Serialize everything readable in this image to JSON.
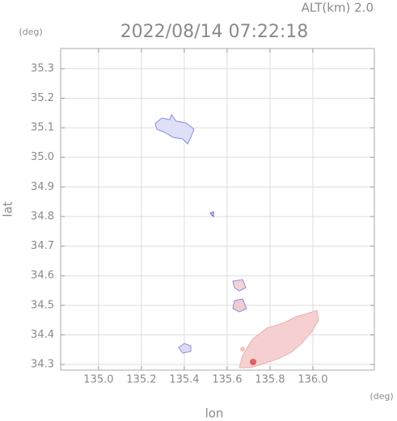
{
  "chart_data": {
    "type": "map",
    "title": "2022/08/14 07:22:18",
    "subtitle": "ALT(km) 2.0",
    "x_label": "lon",
    "y_label": "lat",
    "x_unit": "(deg)",
    "y_unit": "(deg)",
    "xlim": [
      134.823,
      136.287
    ],
    "ylim": [
      34.281,
      35.368
    ],
    "xticks": [
      {
        "value": 135.0,
        "label": "135.0"
      },
      135.2,
      135.4,
      135.6,
      135.8,
      {
        "value": 136.0,
        "label": "136.0"
      }
    ],
    "yticks": [
      35.3,
      35.2,
      35.1,
      {
        "value": 35.0,
        "label": "35.0"
      },
      34.9,
      34.8,
      34.7,
      34.6,
      34.5,
      34.4,
      34.3
    ],
    "grid": true
  }
}
